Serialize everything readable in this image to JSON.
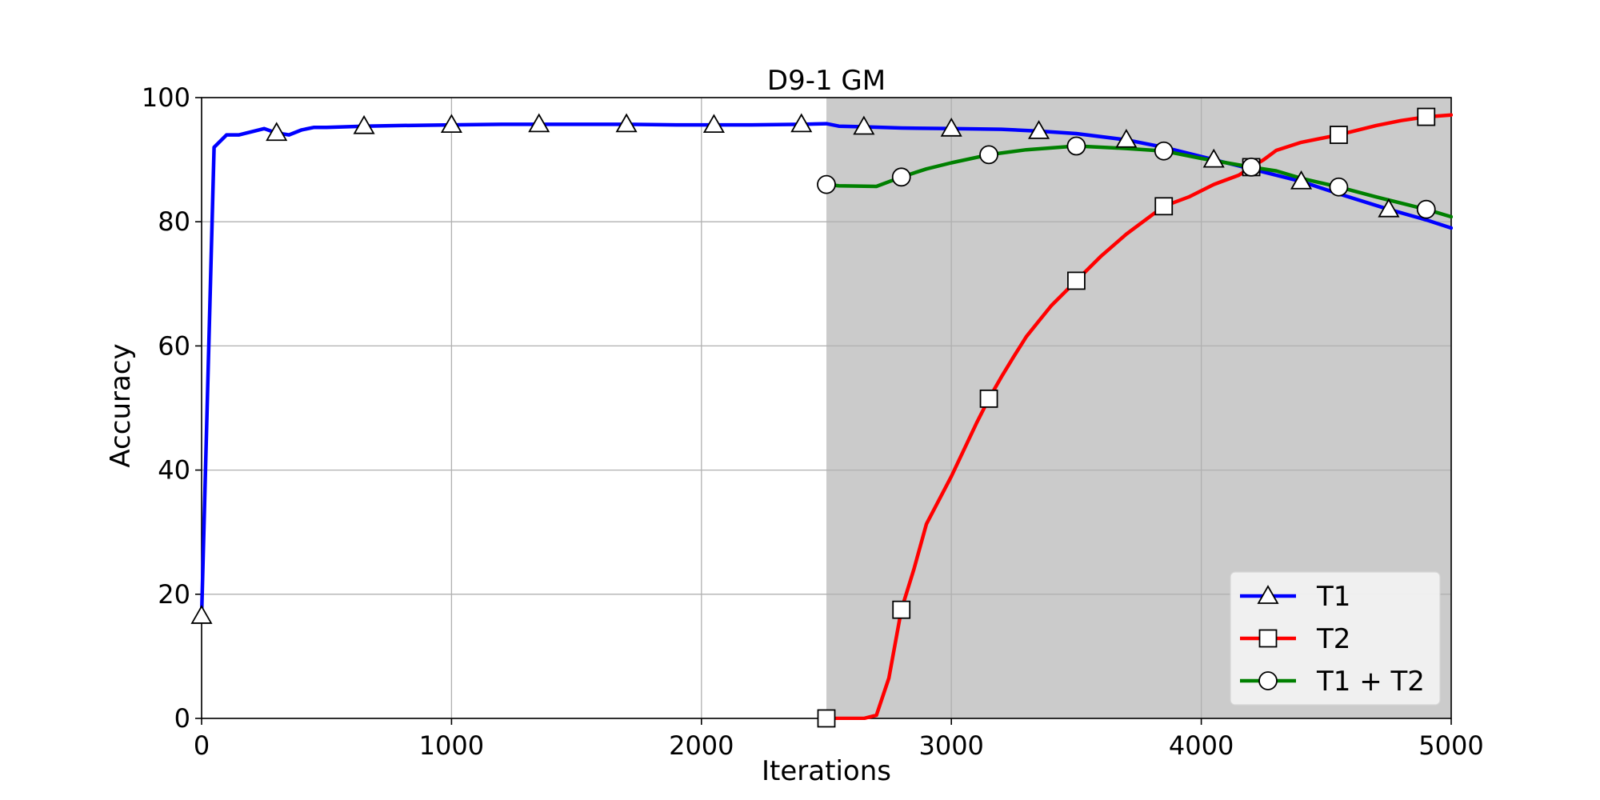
{
  "chart_data": {
    "type": "line",
    "title": "D9-1 GM",
    "xlabel": "Iterations",
    "ylabel": "Accuracy",
    "xlim": [
      0,
      5000
    ],
    "ylim": [
      0,
      100
    ],
    "xticks": [
      0,
      1000,
      2000,
      3000,
      4000,
      5000
    ],
    "yticks": [
      0,
      20,
      40,
      60,
      80,
      100
    ],
    "grid": true,
    "legend_position": "bottom-right",
    "shaded_region": {
      "x_start": 2500,
      "x_end": 5000,
      "color": "#cbcbcb"
    },
    "series": [
      {
        "name": "T1",
        "color": "#0000ff",
        "marker": "triangle",
        "x": [
          0,
          50,
          100,
          150,
          200,
          250,
          300,
          350,
          400,
          450,
          500,
          650,
          800,
          1000,
          1200,
          1350,
          1500,
          1700,
          1900,
          2050,
          2200,
          2400,
          2500,
          2550,
          2650,
          2800,
          3000,
          3200,
          3350,
          3500,
          3700,
          3850,
          4050,
          4200,
          4400,
          4550,
          4750,
          4900,
          5000
        ],
        "y": [
          16.5,
          92,
          94,
          94,
          94.5,
          95,
          94.3,
          94,
          94.8,
          95.2,
          95.2,
          95.4,
          95.5,
          95.6,
          95.7,
          95.7,
          95.7,
          95.7,
          95.6,
          95.6,
          95.6,
          95.7,
          95.8,
          95.4,
          95.3,
          95.1,
          95,
          94.9,
          94.6,
          94.2,
          93.2,
          92,
          90,
          88.5,
          86.5,
          84.5,
          82,
          80.3,
          79
        ]
      },
      {
        "name": "T2",
        "color": "#ff0000",
        "marker": "square",
        "x": [
          2500,
          2600,
          2650,
          2700,
          2750,
          2800,
          2850,
          2900,
          3000,
          3100,
          3150,
          3200,
          3250,
          3300,
          3350,
          3400,
          3500,
          3600,
          3700,
          3850,
          3950,
          4050,
          4150,
          4200,
          4250,
          4300,
          4400,
          4550,
          4700,
          4800,
          4900,
          5000
        ],
        "y": [
          0,
          0,
          0,
          0.5,
          6.5,
          17.5,
          24,
          31.3,
          39,
          47.5,
          51.5,
          55,
          58.3,
          61.5,
          64,
          66.5,
          70.5,
          74.5,
          78,
          82.5,
          84,
          86,
          87.5,
          88.8,
          90,
          91.5,
          92.8,
          94,
          95.5,
          96.3,
          96.9,
          97.2
        ]
      },
      {
        "name": "T1 + T2",
        "color": "#008000",
        "marker": "circle",
        "x": [
          2500,
          2550,
          2700,
          2800,
          2900,
          3000,
          3150,
          3300,
          3500,
          3700,
          3850,
          4000,
          4200,
          4300,
          4400,
          4550,
          4700,
          4900,
          5000
        ],
        "y": [
          86,
          85.8,
          85.7,
          87.2,
          88.5,
          89.5,
          90.8,
          91.6,
          92.2,
          91.8,
          91.4,
          90.2,
          88.8,
          88.2,
          87,
          85.6,
          84,
          82,
          80.8
        ]
      }
    ]
  }
}
